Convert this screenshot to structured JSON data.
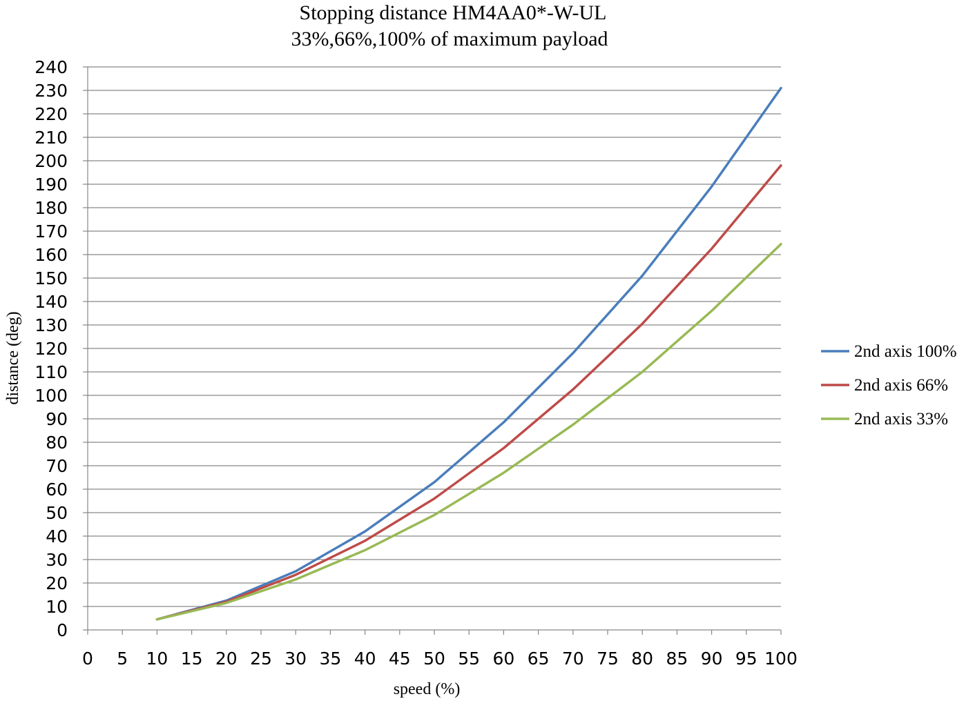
{
  "chart_data": {
    "type": "line",
    "title": "Stopping distance HM4AA0*-W-UL",
    "subtitle": "33%,66%,100% of maximum payload",
    "xlabel": "speed (%)",
    "ylabel": "distance (deg)",
    "xlim": [
      0,
      100
    ],
    "ylim": [
      0,
      240
    ],
    "x_ticks": [
      "0",
      "5",
      "10",
      "15",
      "20",
      "25",
      "30",
      "35",
      "40",
      "45",
      "50",
      "55",
      "60",
      "65",
      "70",
      "75",
      "80",
      "85",
      "90",
      "95",
      "100"
    ],
    "y_ticks": [
      "0",
      "10",
      "20",
      "30",
      "40",
      "50",
      "60",
      "70",
      "80",
      "90",
      "100",
      "110",
      "120",
      "130",
      "140",
      "150",
      "160",
      "170",
      "180",
      "190",
      "200",
      "210",
      "220",
      "230",
      "240"
    ],
    "grid": "horizontal",
    "legend_position": "right",
    "x": [
      10,
      20,
      30,
      40,
      50,
      60,
      70,
      80,
      90,
      100
    ],
    "series": [
      {
        "name": "2nd axis 100%",
        "color": "#4a7ebb",
        "values": [
          4.5,
          12.5,
          25,
          42,
          63,
          88.5,
          118,
          151,
          189,
          231
        ]
      },
      {
        "name": "2nd axis 66%",
        "color": "#be4b48",
        "values": [
          4.5,
          12,
          23.5,
          38,
          56,
          77.5,
          102.5,
          130.5,
          162.5,
          198
        ]
      },
      {
        "name": "2nd axis 33%",
        "color": "#98b954",
        "values": [
          4.5,
          11.5,
          21.5,
          34,
          49,
          67,
          87.5,
          110,
          136,
          164.5
        ]
      }
    ]
  }
}
